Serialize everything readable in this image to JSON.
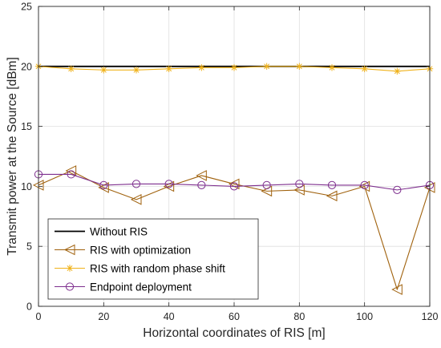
{
  "chart_data": {
    "type": "line",
    "title": "",
    "xlabel": "Horizontal coordinates of RIS [m]",
    "ylabel": "Transmit power at the Source [dBm]",
    "xlim": [
      0,
      120
    ],
    "ylim": [
      0,
      25
    ],
    "xticks": [
      0,
      20,
      40,
      60,
      80,
      100,
      120
    ],
    "yticks": [
      0,
      5,
      10,
      15,
      20,
      25
    ],
    "grid": true,
    "legend_position": "bottom-left",
    "x": [
      0,
      10,
      20,
      30,
      40,
      50,
      60,
      70,
      80,
      90,
      100,
      110,
      120
    ],
    "series": [
      {
        "name": "Without RIS",
        "color": "#000000",
        "marker": "none",
        "values": [
          20,
          20,
          20,
          20,
          20,
          20,
          20,
          20,
          20,
          20,
          20,
          20,
          20
        ]
      },
      {
        "name": "RIS with optimization",
        "color": "#a0620e",
        "marker": "triangle-left",
        "values": [
          10.1,
          11.3,
          9.9,
          8.9,
          10.0,
          10.9,
          10.2,
          9.6,
          9.7,
          9.2,
          10.0,
          1.4,
          9.9
        ]
      },
      {
        "name": "RIS with random phase shift",
        "color": "#f0b21a",
        "marker": "asterisk",
        "values": [
          20.0,
          19.8,
          19.7,
          19.7,
          19.8,
          19.9,
          19.9,
          20.0,
          20.0,
          19.9,
          19.8,
          19.6,
          19.8
        ]
      },
      {
        "name": "Endpoint deployment",
        "color": "#7e2f8e",
        "marker": "circle",
        "values": [
          11.0,
          11.0,
          10.1,
          10.2,
          10.2,
          10.1,
          10.0,
          10.1,
          10.2,
          10.1,
          10.1,
          9.7,
          10.1
        ]
      }
    ]
  }
}
